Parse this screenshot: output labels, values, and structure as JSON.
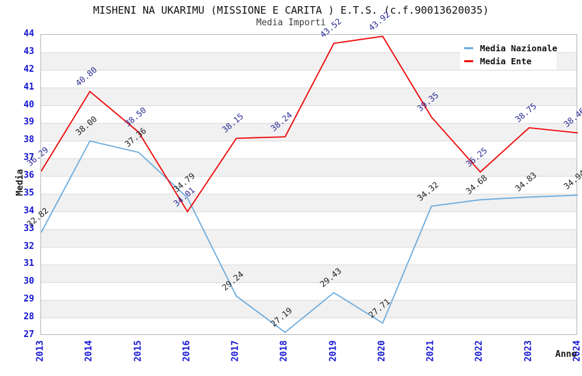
{
  "header": {
    "title": "MISHENI NA UKARIMU (MISSIONE E CARITA ) E.T.S. (c.f.90013620035)",
    "subtitle": "Media Importi"
  },
  "axes": {
    "y_title": "Media",
    "x_title": "Anno"
  },
  "legend": {
    "position": "top-right",
    "items": [
      {
        "label": "Media Nazionale",
        "color": "#6fadde"
      },
      {
        "label": "Media Ente",
        "color": "#ee0a0a"
      }
    ]
  },
  "chart_data": {
    "type": "line",
    "title": "MISHENI NA UKARIMU (MISSIONE E CARITA ) E.T.S. (c.f.90013620035)",
    "subtitle": "Media Importi",
    "xlabel": "Anno",
    "ylabel": "Media",
    "x": [
      2013,
      2014,
      2015,
      2016,
      2017,
      2018,
      2019,
      2020,
      2021,
      2022,
      2023,
      2024
    ],
    "series": [
      {
        "name": "Media Nazionale",
        "color": "#6fadde",
        "label_color": "#1c1c1c",
        "values": [
          32.82,
          38.0,
          37.36,
          34.79,
          29.24,
          27.19,
          29.43,
          27.71,
          34.32,
          34.68,
          34.83,
          34.94
        ]
      },
      {
        "name": "Media Ente",
        "color": "#ee0a0a",
        "label_color": "#2b2b96",
        "values": [
          36.29,
          40.8,
          38.5,
          34.01,
          38.15,
          38.24,
          43.52,
          43.92,
          39.35,
          36.25,
          38.75,
          38.46
        ]
      }
    ],
    "ylim": [
      27,
      44
    ],
    "y_ticks": [
      27,
      28,
      29,
      30,
      31,
      32,
      33,
      34,
      35,
      36,
      37,
      38,
      39,
      40,
      41,
      42,
      43,
      44
    ],
    "grid": true,
    "grid_color": "#d9d9d9",
    "band_colors": [
      "#ffffff",
      "#f1f1f1"
    ],
    "tick_color": "#1616d1",
    "legend_position": "top-right"
  }
}
